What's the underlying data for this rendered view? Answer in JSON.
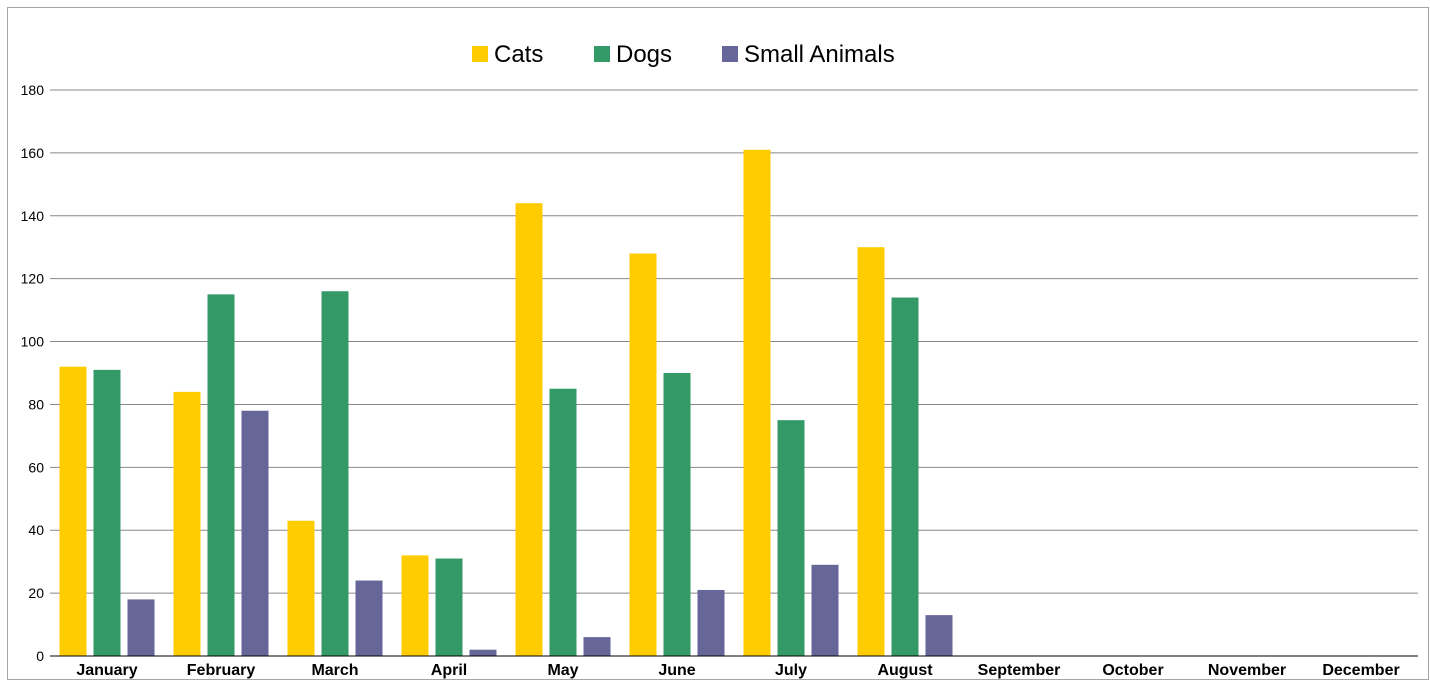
{
  "chart_data": {
    "type": "bar",
    "categories": [
      "January",
      "February",
      "March",
      "April",
      "May",
      "June",
      "July",
      "August",
      "September",
      "October",
      "November",
      "December"
    ],
    "series": [
      {
        "name": "Cats",
        "color": "#ffcc00",
        "values": [
          92,
          84,
          43,
          32,
          144,
          128,
          161,
          130,
          0,
          0,
          0,
          0
        ]
      },
      {
        "name": "Dogs",
        "color": "#339966",
        "values": [
          91,
          115,
          116,
          31,
          85,
          90,
          75,
          114,
          0,
          0,
          0,
          0
        ]
      },
      {
        "name": "Small Animals",
        "color": "#666699",
        "values": [
          18,
          78,
          24,
          2,
          6,
          21,
          29,
          13,
          0,
          0,
          0,
          0
        ]
      }
    ],
    "yticks": [
      0,
      20,
      40,
      60,
      80,
      100,
      120,
      140,
      160,
      180
    ],
    "ylim": [
      0,
      180
    ],
    "title": "",
    "xlabel": "",
    "ylabel": "",
    "grid": true,
    "legend_position": "top-center",
    "gridline_color": "#888888",
    "axis_color": "#000000"
  }
}
